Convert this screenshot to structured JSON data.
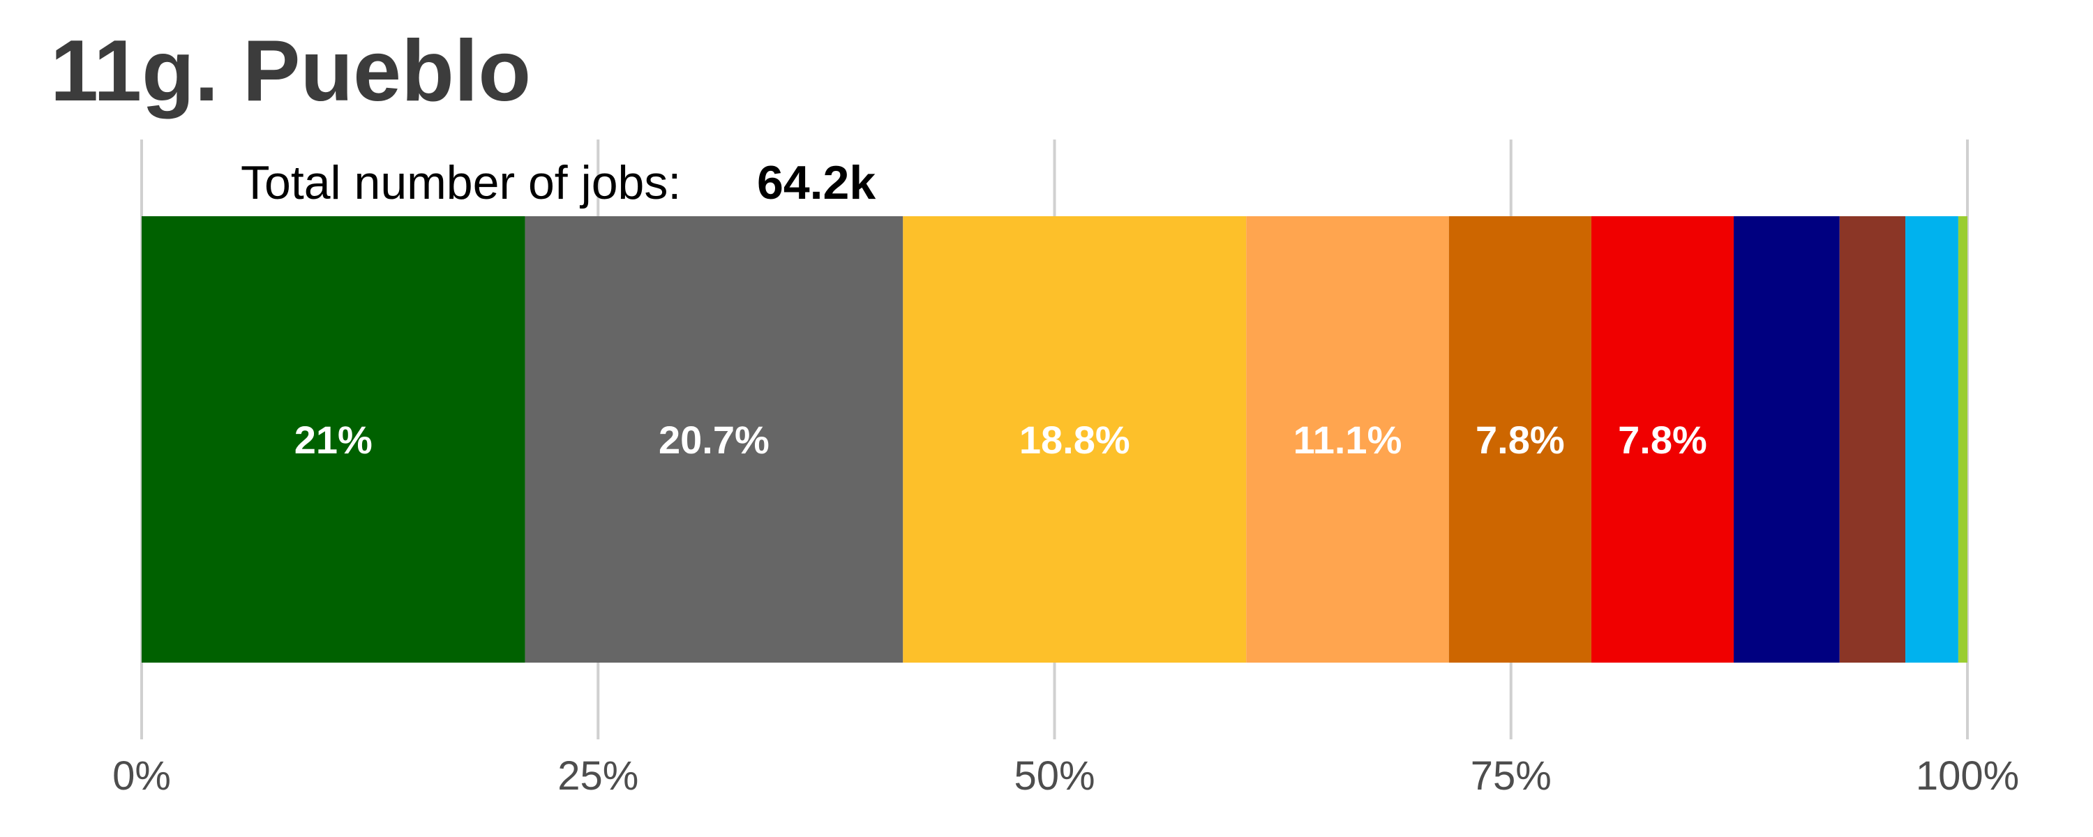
{
  "chart_data": {
    "type": "bar",
    "orientation": "horizontal-stacked",
    "title": "11g. Pueblo",
    "total_label": "Total number of jobs:",
    "total_value": "64.2k",
    "xlim": [
      0,
      100
    ],
    "x_ticks": [
      {
        "value": 0,
        "label": "0%"
      },
      {
        "value": 25,
        "label": "25%"
      },
      {
        "value": 50,
        "label": "50%"
      },
      {
        "value": 75,
        "label": "75%"
      },
      {
        "value": 100,
        "label": "100%"
      }
    ],
    "grid": true,
    "segments": [
      {
        "value": 21.0,
        "label": "21%",
        "color": "#006100"
      },
      {
        "value": 20.7,
        "label": "20.7%",
        "color": "#666666"
      },
      {
        "value": 18.8,
        "label": "18.8%",
        "color": "#fdc02a"
      },
      {
        "value": 11.1,
        "label": "11.1%",
        "color": "#ffa54f"
      },
      {
        "value": 7.8,
        "label": "7.8%",
        "color": "#cd6600"
      },
      {
        "value": 7.8,
        "label": "7.8%",
        "color": "#f00000"
      },
      {
        "value": 5.8,
        "label": "",
        "color": "#000080"
      },
      {
        "value": 3.6,
        "label": "",
        "color": "#8b3626"
      },
      {
        "value": 2.9,
        "label": "",
        "color": "#00b2ee"
      },
      {
        "value": 0.5,
        "label": "",
        "color": "#9acd32"
      }
    ]
  }
}
